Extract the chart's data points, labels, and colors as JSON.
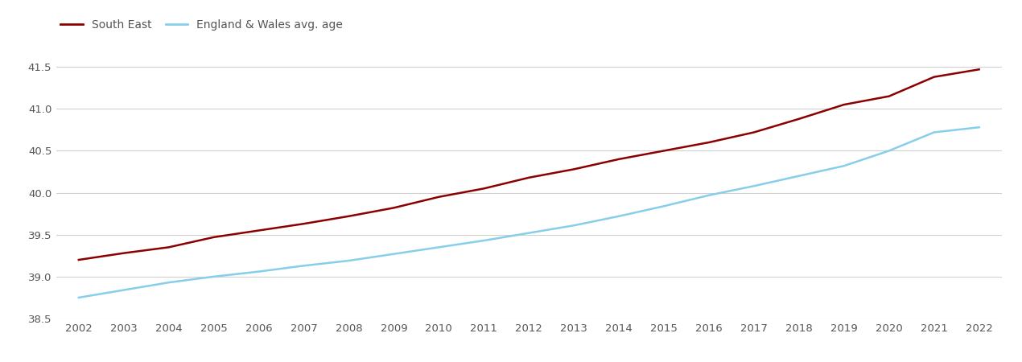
{
  "years": [
    2002,
    2003,
    2004,
    2005,
    2006,
    2007,
    2008,
    2009,
    2010,
    2011,
    2012,
    2013,
    2014,
    2015,
    2016,
    2017,
    2018,
    2019,
    2020,
    2021,
    2022
  ],
  "south_east": [
    39.2,
    39.28,
    39.35,
    39.47,
    39.55,
    39.63,
    39.72,
    39.82,
    39.95,
    40.05,
    40.18,
    40.28,
    40.4,
    40.5,
    40.6,
    40.72,
    40.88,
    41.05,
    41.15,
    41.38,
    41.47
  ],
  "england_wales": [
    38.75,
    38.84,
    38.93,
    39.0,
    39.06,
    39.13,
    39.19,
    39.27,
    39.35,
    39.43,
    39.52,
    39.61,
    39.72,
    39.84,
    39.97,
    40.08,
    40.2,
    40.32,
    40.5,
    40.72,
    40.78
  ],
  "south_east_color": "#8b0000",
  "england_wales_color": "#87CEEB",
  "south_east_label": "South East",
  "england_wales_label": "England & Wales avg. age",
  "ylim": [
    38.5,
    41.65
  ],
  "yticks": [
    38.5,
    39.0,
    39.5,
    40.0,
    40.5,
    41.0,
    41.5
  ],
  "line_width": 1.8,
  "background_color": "#ffffff",
  "grid_color": "#d0d0d0",
  "tick_label_color": "#555555",
  "tick_fontsize": 9.5,
  "legend_fontsize": 10
}
